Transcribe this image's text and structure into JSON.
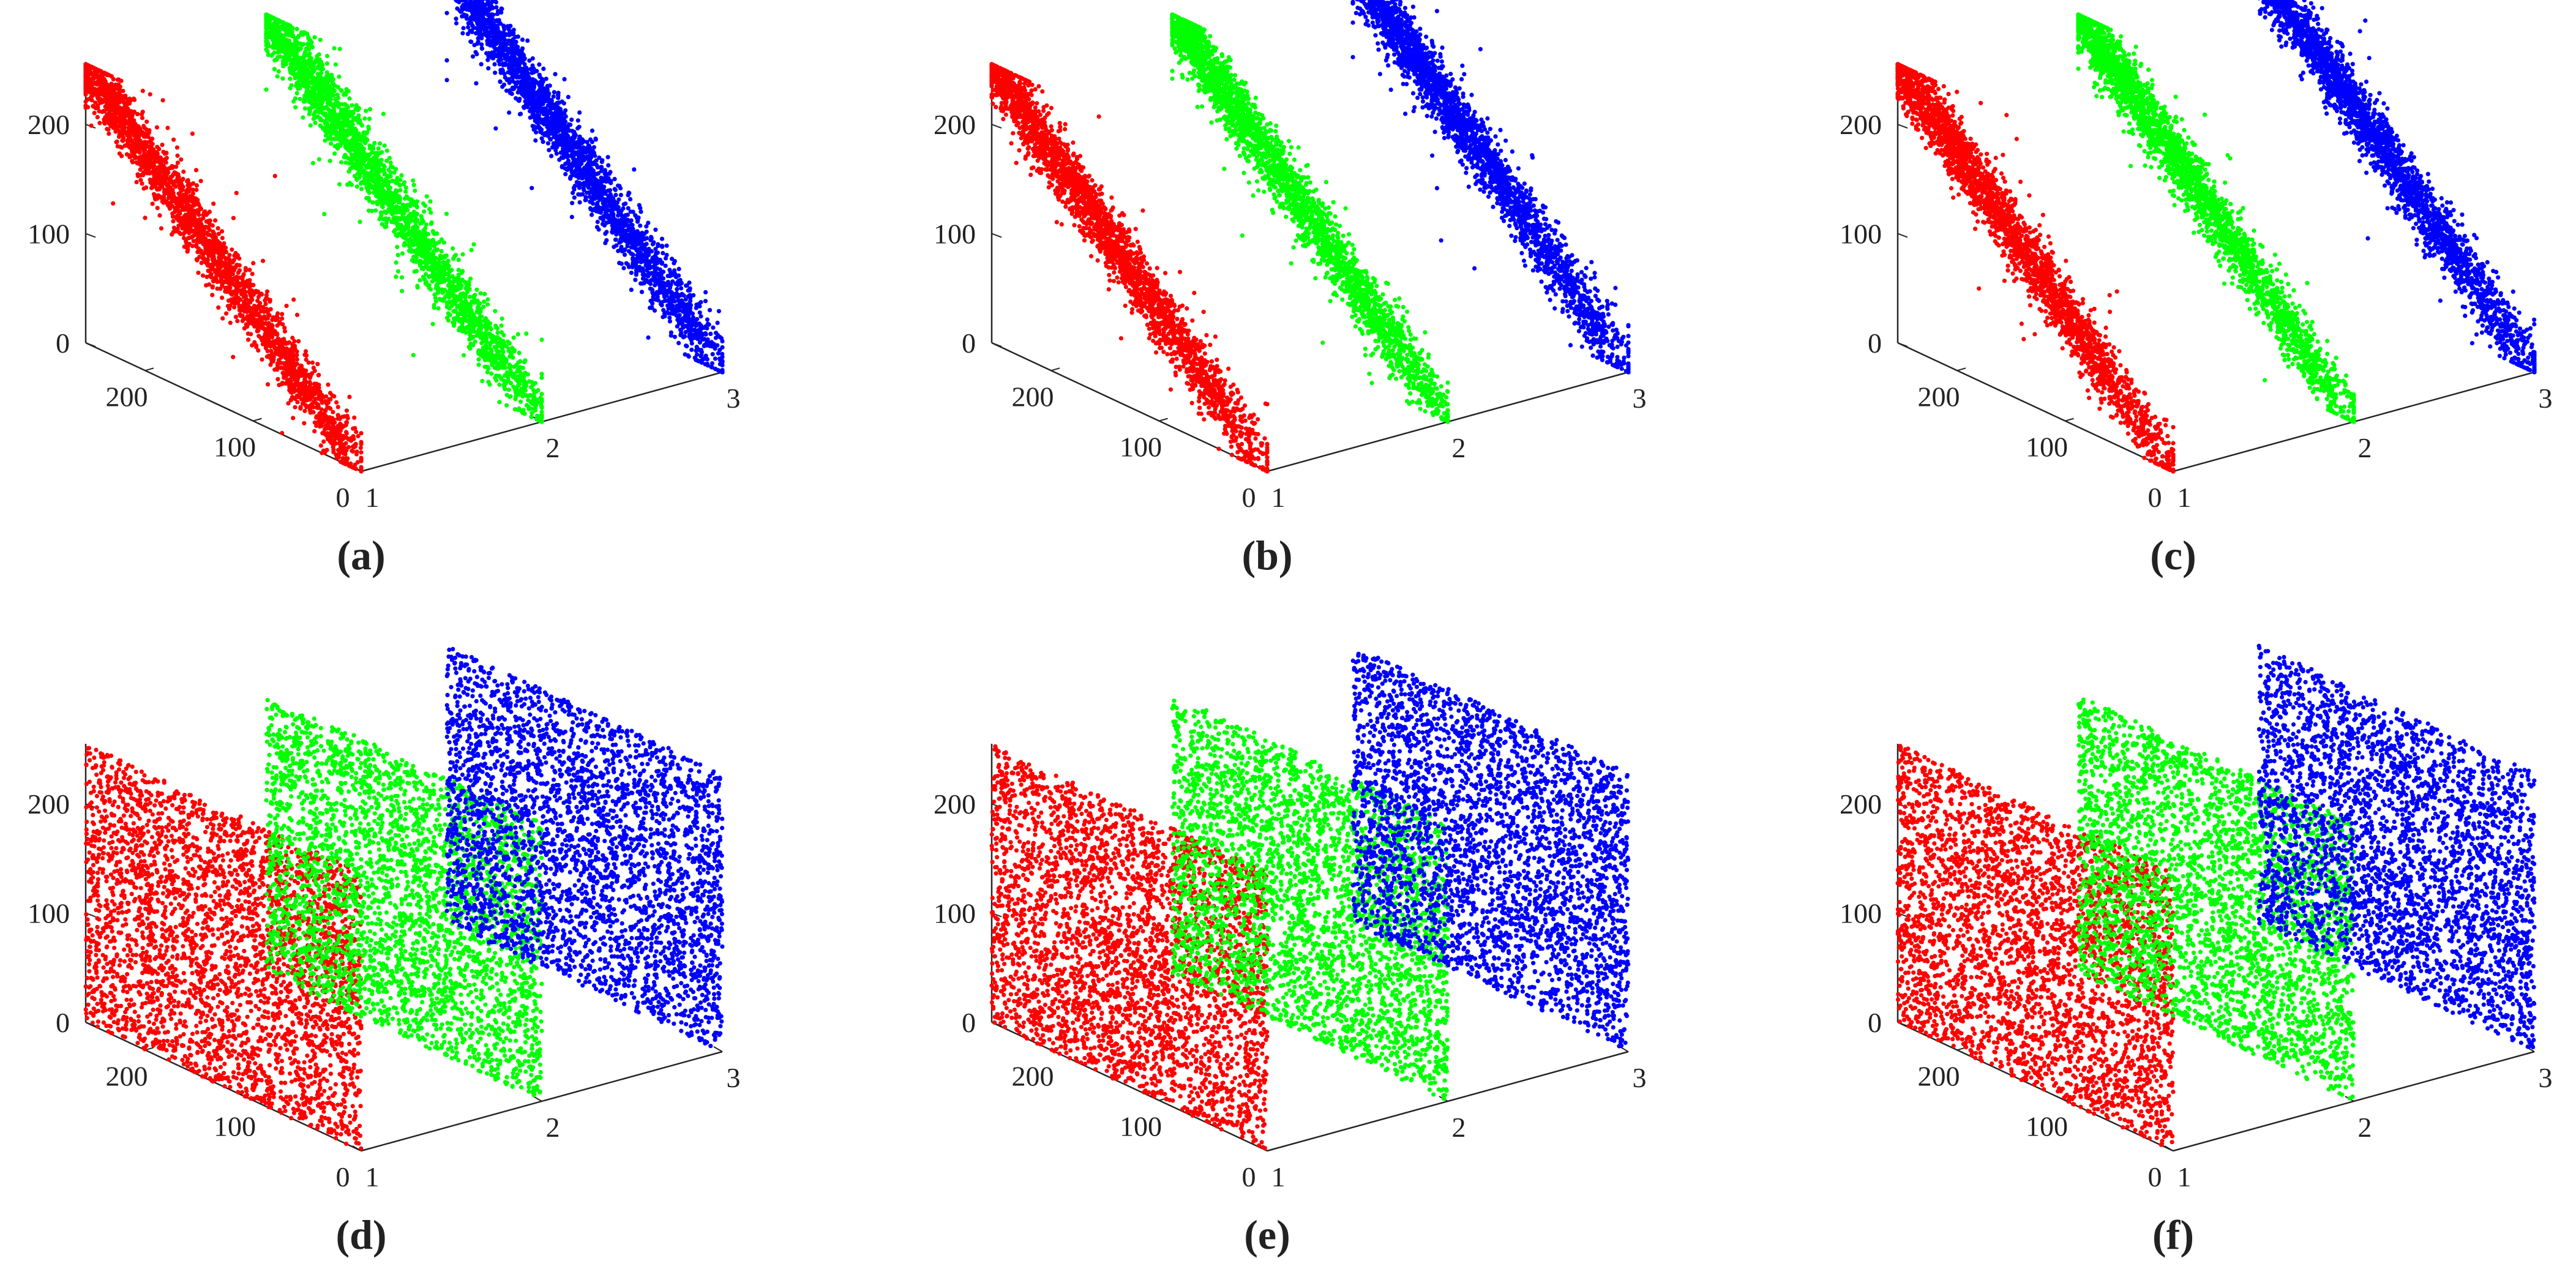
{
  "colors": {
    "channel_1": "#ff0000",
    "channel_2": "#00ff00",
    "channel_3": "#0000ff",
    "axis": "#262626"
  },
  "chart_data": [
    {
      "panel": "(a)",
      "type": "scatter",
      "style": "correlated",
      "dimensions": "3d",
      "axes": {
        "x_ticks": [
          "1",
          "2",
          "3"
        ],
        "x_range": [
          1,
          3
        ],
        "y_ticks": [
          "0",
          "100",
          "200"
        ],
        "y_range": [
          0,
          255
        ],
        "z_ticks": [
          "0",
          "100",
          "200"
        ],
        "z_range": [
          0,
          255
        ]
      },
      "series": [
        {
          "x": 1,
          "color": "channel_1"
        },
        {
          "x": 2,
          "color": "channel_2"
        },
        {
          "x": 3,
          "color": "channel_3"
        }
      ]
    },
    {
      "panel": "(b)",
      "type": "scatter",
      "style": "correlated",
      "dimensions": "3d",
      "axes": {
        "x_ticks": [
          "1",
          "2",
          "3"
        ],
        "x_range": [
          1,
          3
        ],
        "y_ticks": [
          "0",
          "100",
          "200"
        ],
        "y_range": [
          0,
          255
        ],
        "z_ticks": [
          "0",
          "100",
          "200"
        ],
        "z_range": [
          0,
          255
        ]
      },
      "series": [
        {
          "x": 1,
          "color": "channel_1"
        },
        {
          "x": 2,
          "color": "channel_2"
        },
        {
          "x": 3,
          "color": "channel_3"
        }
      ]
    },
    {
      "panel": "(c)",
      "type": "scatter",
      "style": "correlated",
      "dimensions": "3d",
      "axes": {
        "x_ticks": [
          "1",
          "2",
          "3"
        ],
        "x_range": [
          1,
          3
        ],
        "y_ticks": [
          "0",
          "100",
          "200"
        ],
        "y_range": [
          0,
          255
        ],
        "z_ticks": [
          "0",
          "100",
          "200"
        ],
        "z_range": [
          0,
          255
        ]
      },
      "series": [
        {
          "x": 1,
          "color": "channel_1"
        },
        {
          "x": 2,
          "color": "channel_2"
        },
        {
          "x": 3,
          "color": "channel_3"
        }
      ]
    },
    {
      "panel": "(d)",
      "type": "scatter",
      "style": "uniform",
      "dimensions": "3d",
      "axes": {
        "x_ticks": [
          "1",
          "2",
          "3"
        ],
        "x_range": [
          1,
          3
        ],
        "y_ticks": [
          "0",
          "100",
          "200"
        ],
        "y_range": [
          0,
          255
        ],
        "z_ticks": [
          "0",
          "100",
          "200"
        ],
        "z_range": [
          0,
          255
        ]
      },
      "series": [
        {
          "x": 1,
          "color": "channel_1"
        },
        {
          "x": 2,
          "color": "channel_2"
        },
        {
          "x": 3,
          "color": "channel_3"
        }
      ]
    },
    {
      "panel": "(e)",
      "type": "scatter",
      "style": "uniform",
      "dimensions": "3d",
      "axes": {
        "x_ticks": [
          "1",
          "2",
          "3"
        ],
        "x_range": [
          1,
          3
        ],
        "y_ticks": [
          "0",
          "100",
          "200"
        ],
        "y_range": [
          0,
          255
        ],
        "z_ticks": [
          "0",
          "100",
          "200"
        ],
        "z_range": [
          0,
          255
        ]
      },
      "series": [
        {
          "x": 1,
          "color": "channel_1"
        },
        {
          "x": 2,
          "color": "channel_2"
        },
        {
          "x": 3,
          "color": "channel_3"
        }
      ]
    },
    {
      "panel": "(f)",
      "type": "scatter",
      "style": "uniform",
      "dimensions": "3d",
      "axes": {
        "x_ticks": [
          "1",
          "2",
          "3"
        ],
        "x_range": [
          1,
          3
        ],
        "y_ticks": [
          "0",
          "100",
          "200"
        ],
        "y_range": [
          0,
          255
        ],
        "z_ticks": [
          "0",
          "100",
          "200"
        ],
        "z_range": [
          0,
          255
        ]
      },
      "series": [
        {
          "x": 1,
          "color": "channel_1"
        },
        {
          "x": 2,
          "color": "channel_2"
        },
        {
          "x": 3,
          "color": "channel_3"
        }
      ]
    }
  ]
}
